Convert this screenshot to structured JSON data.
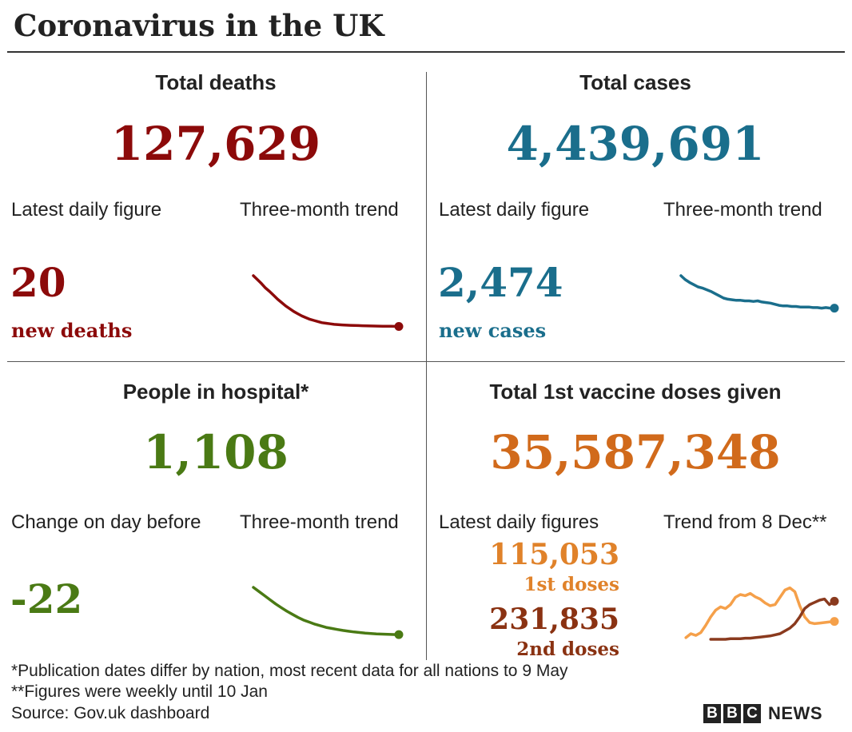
{
  "title": "Coronavirus in the UK",
  "colors": {
    "deaths": "#8c0a0a",
    "cases": "#1a6e8c",
    "hospital": "#4a7a14",
    "vaccine": "#d16a1b",
    "first_doses": "#e0822a",
    "second_doses": "#8a3212",
    "first_line": "#f5a04a",
    "second_line": "#8a3a1e"
  },
  "panels": {
    "deaths": {
      "title": "Total deaths",
      "total": "127,629",
      "left_label": "Latest daily figure",
      "right_label": "Three-month trend",
      "figure": "20",
      "figure_label": "new deaths"
    },
    "cases": {
      "title": "Total cases",
      "total": "4,439,691",
      "left_label": "Latest daily figure",
      "right_label": "Three-month trend",
      "figure": "2,474",
      "figure_label": "new cases"
    },
    "hospital": {
      "title": "People in hospital*",
      "total": "1,108",
      "left_label": "Change on day before",
      "right_label": "Three-month trend",
      "figure": "-22"
    },
    "vaccine": {
      "title": "Total 1st vaccine doses given",
      "total": "35,587,348",
      "left_label": "Latest daily figures",
      "right_label": "Trend from 8 Dec**",
      "first_value": "115,053",
      "first_label": "1st doses",
      "second_value": "231,835",
      "second_label": "2nd doses"
    }
  },
  "footnotes": [
    "*Publication dates differ by nation, most recent data for all nations to 9 May",
    "**Figures were weekly until 10 Jan",
    "Source: Gov.uk dashboard"
  ],
  "logo": {
    "letters": [
      "B",
      "B",
      "C"
    ],
    "word": "NEWS"
  },
  "chart_data": [
    {
      "type": "line",
      "title": "Three-month trend",
      "series": [
        {
          "values": [
            100,
            93,
            86,
            78,
            72,
            65,
            58,
            52,
            46,
            41,
            36,
            32,
            28,
            25,
            22,
            20,
            18,
            16,
            15,
            14,
            13,
            12.5,
            12,
            11.6,
            11.3,
            11,
            10.8,
            10.6,
            10.4,
            10.2,
            10,
            9.8,
            9.7,
            9.6,
            9.5,
            9.4,
            9.3
          ]
        }
      ],
      "ylim": [
        0,
        100
      ]
    },
    {
      "type": "line",
      "title": "Three-month trend",
      "series": [
        {
          "values": [
            100,
            93,
            88,
            84,
            80,
            78,
            75,
            72,
            68,
            64,
            60,
            58,
            57,
            56,
            56,
            55,
            55,
            54,
            55,
            53,
            52,
            51,
            49,
            47,
            46,
            46,
            45,
            45,
            44,
            44,
            44,
            43,
            43,
            42,
            43,
            42,
            42
          ]
        }
      ],
      "ylim": [
        0,
        100
      ]
    },
    {
      "type": "line",
      "title": "Three-month trend",
      "series": [
        {
          "values": [
            100,
            92,
            84,
            76,
            68,
            61,
            54,
            48,
            42,
            37,
            33,
            29,
            26,
            23,
            21,
            19,
            17,
            15.5,
            14.2,
            13,
            12,
            11.2,
            10.5,
            10,
            9.6,
            9.2,
            9
          ]
        }
      ],
      "ylim": [
        0,
        100
      ]
    },
    {
      "type": "line",
      "title": "Trend from 8 Dec**",
      "series": [
        {
          "name": "1st doses",
          "values": [
            null,
            3,
            10,
            7,
            12,
            25,
            40,
            52,
            58,
            55,
            62,
            75,
            80,
            78,
            82,
            76,
            72,
            65,
            60,
            62,
            75,
            88,
            92,
            85,
            60,
            40,
            30,
            28,
            29,
            30,
            31,
            32
          ]
        },
        {
          "name": "2nd doses",
          "values": [
            null,
            null,
            null,
            null,
            null,
            null,
            0,
            0,
            0,
            0,
            1,
            1,
            1,
            2,
            2,
            3,
            4,
            5,
            6,
            8,
            10,
            15,
            20,
            28,
            40,
            55,
            62,
            66,
            70,
            72,
            62,
            68
          ]
        }
      ],
      "ylim": [
        0,
        100
      ]
    }
  ]
}
